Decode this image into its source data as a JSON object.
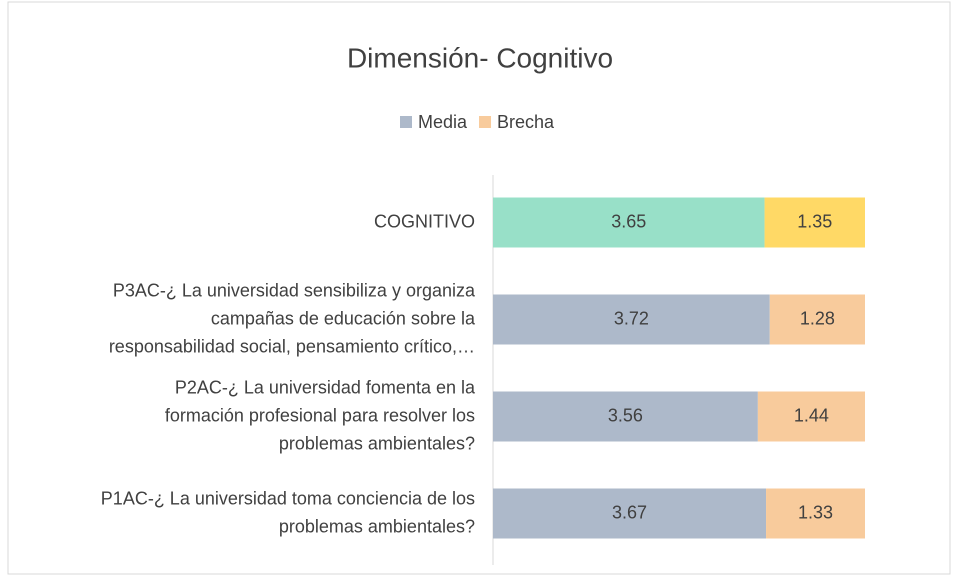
{
  "chart_data": {
    "type": "bar",
    "orientation": "horizontal",
    "stacked": true,
    "title": "Dimensión- Cognitivo",
    "categories": [
      [
        "COGNITIVO"
      ],
      [
        "P3AC-¿ La universidad sensibiliza y organiza",
        "campañas de educación sobre la",
        "responsabilidad social, pensamiento crítico,…"
      ],
      [
        "P2AC-¿ La universidad fomenta en la",
        "formación profesional para resolver los",
        "problemas ambientales?"
      ],
      [
        "P1AC-¿ La universidad toma conciencia de los",
        "problemas ambientales?"
      ]
    ],
    "series": [
      {
        "name": "Media",
        "color": "#adb9ca",
        "colors": [
          "#98e0c8",
          "#adb9ca",
          "#adb9ca",
          "#adb9ca"
        ],
        "values": [
          3.65,
          3.72,
          3.56,
          3.67
        ]
      },
      {
        "name": "Brecha",
        "color": "#f8cb9c",
        "colors": [
          "#ffd966",
          "#f8cb9c",
          "#f8cb9c",
          "#f8cb9c"
        ],
        "values": [
          1.35,
          1.28,
          1.44,
          1.33
        ]
      }
    ],
    "xlim": [
      0,
      5
    ],
    "legend": "top"
  }
}
